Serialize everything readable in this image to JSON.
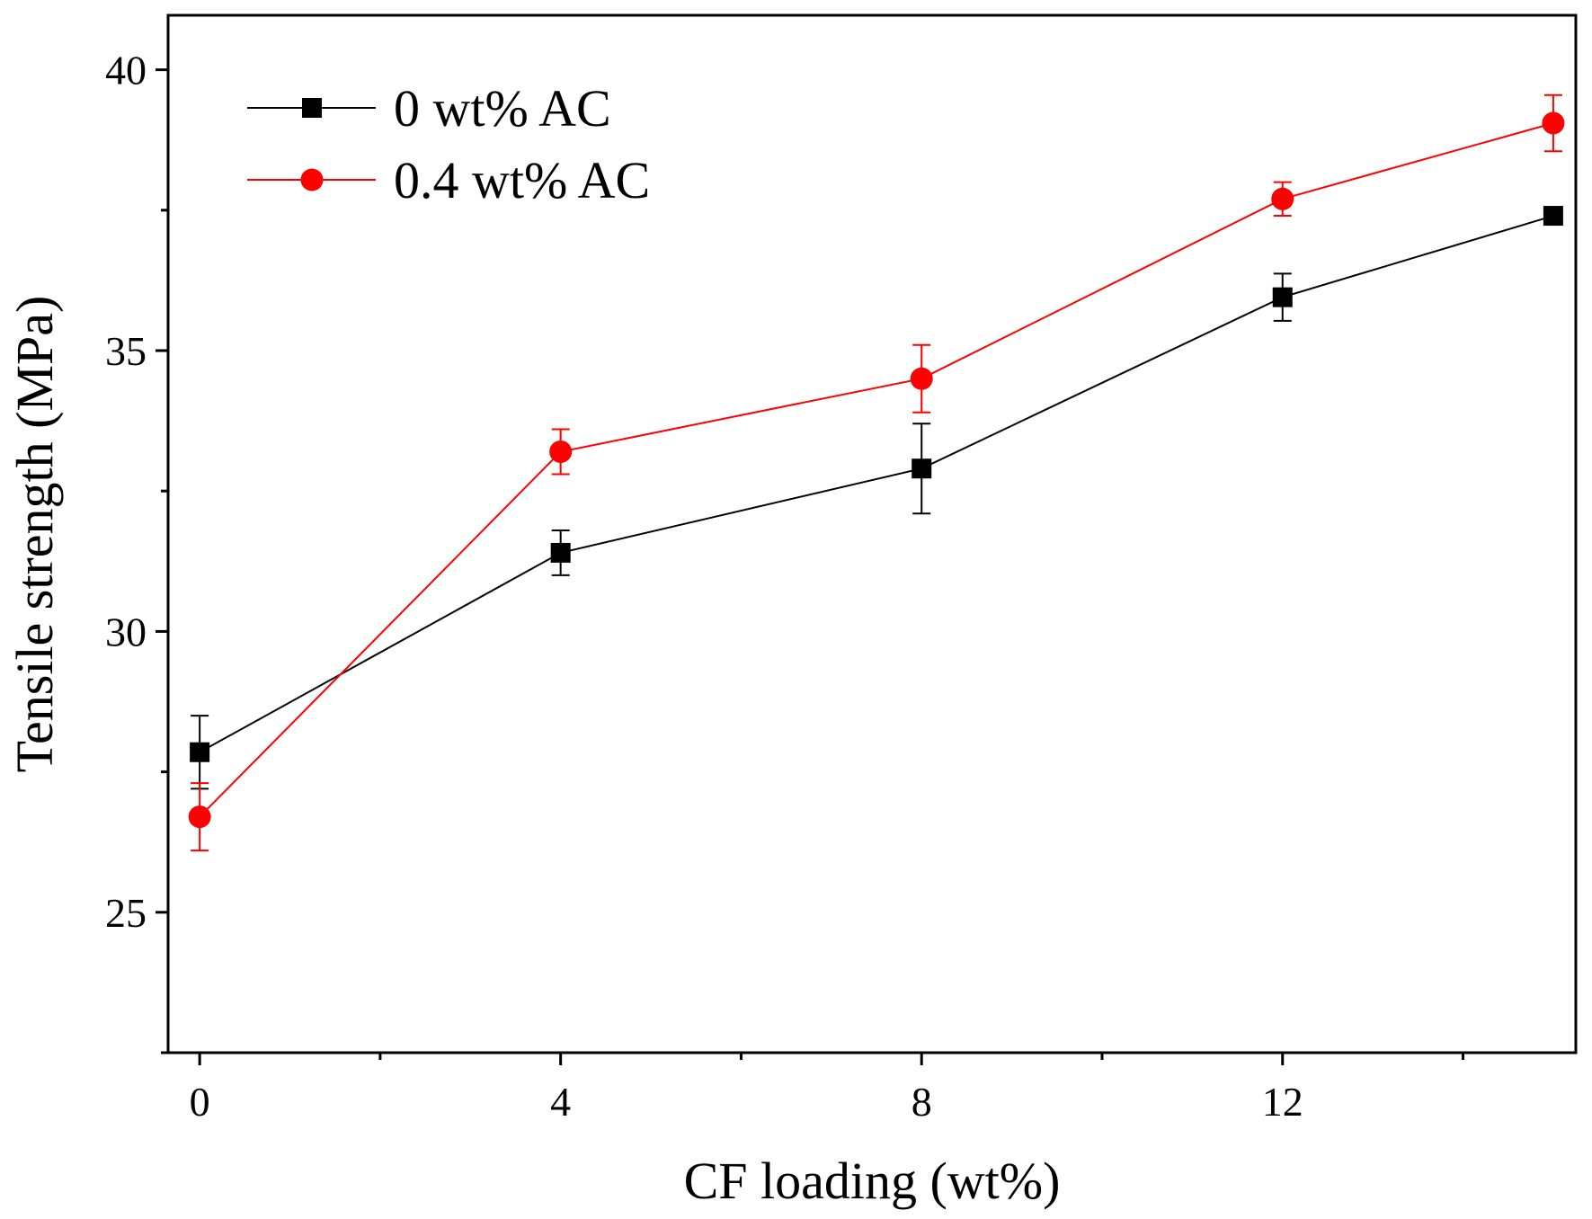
{
  "chart_data": {
    "type": "line",
    "xlabel": "CF loading (wt%)",
    "ylabel": "Tensile strength (MPa)",
    "xlim": [
      -0.35,
      15.25
    ],
    "ylim": [
      22.5,
      40.97
    ],
    "x_ticks": [
      0,
      4,
      8,
      12
    ],
    "x_minor_ticks": [
      2,
      6,
      10,
      14
    ],
    "y_ticks": [
      25,
      30,
      35,
      40
    ],
    "grid": false,
    "legend_position": "top-left",
    "series": [
      {
        "name": "0 wt% AC",
        "color": "#000000",
        "marker": "square",
        "x": [
          0,
          4,
          8,
          12,
          15
        ],
        "y": [
          27.85,
          31.4,
          32.9,
          35.95,
          37.4
        ],
        "error": [
          0.65,
          0.4,
          0.8,
          0.42,
          0.0
        ]
      },
      {
        "name": "0.4 wt% AC",
        "color": "#ff0000",
        "marker": "circle",
        "x": [
          0,
          4,
          8,
          12,
          15
        ],
        "y": [
          26.7,
          33.2,
          34.5,
          37.7,
          39.05
        ],
        "error": [
          0.6,
          0.4,
          0.6,
          0.3,
          0.5
        ]
      }
    ]
  }
}
